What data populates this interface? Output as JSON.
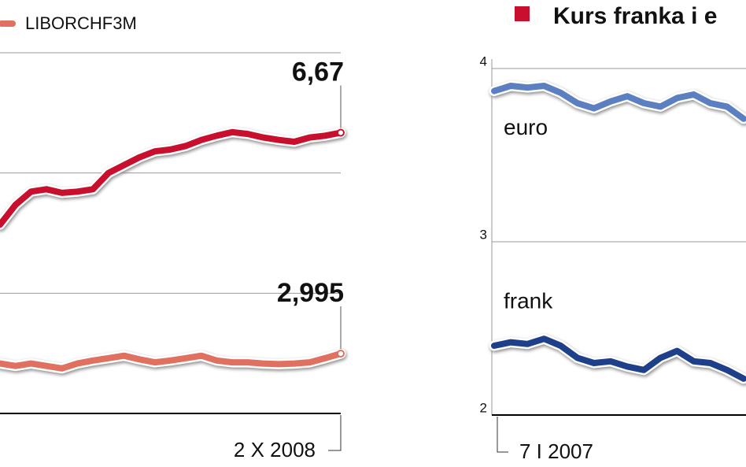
{
  "chart_data": [
    {
      "type": "line",
      "categories": [
        null,
        null,
        null,
        null,
        null,
        null,
        null,
        null,
        null,
        null,
        null,
        null,
        null,
        null,
        null,
        null,
        null,
        null,
        null,
        null,
        null,
        null,
        "2 X 2008"
      ],
      "series": [
        {
          "color": "#c8102e",
          "values": [
            5.14,
            5.47,
            5.69,
            5.73,
            5.67,
            5.69,
            5.73,
            6.0,
            6.13,
            6.26,
            6.36,
            6.39,
            6.45,
            6.55,
            6.62,
            6.68,
            6.65,
            6.59,
            6.55,
            6.52,
            6.59,
            6.62,
            6.67
          ],
          "value_labels": [
            null,
            null,
            null,
            null,
            null,
            null,
            null,
            null,
            null,
            null,
            null,
            null,
            null,
            null,
            null,
            null,
            null,
            null,
            null,
            null,
            null,
            null,
            "6,67"
          ]
        },
        {
          "name": "LIBORCHF3M",
          "color": "#e07060",
          "values": [
            2.83,
            2.79,
            2.83,
            2.79,
            2.75,
            2.83,
            2.88,
            2.92,
            2.96,
            2.9,
            2.85,
            2.88,
            2.92,
            2.96,
            2.88,
            2.85,
            2.85,
            2.83,
            2.82,
            2.83,
            2.85,
            2.92,
            2.995
          ],
          "value_labels": [
            null,
            null,
            null,
            null,
            null,
            null,
            null,
            null,
            null,
            null,
            null,
            null,
            null,
            null,
            null,
            null,
            null,
            null,
            null,
            null,
            null,
            null,
            "2,995"
          ]
        }
      ],
      "ylim": [
        2,
        8
      ],
      "yticks": [
        2,
        4,
        6,
        8
      ],
      "ytick_labels": false,
      "grid": true
    },
    {
      "type": "line",
      "title": "Kurs franka i e",
      "categories": [
        "7 I 2007",
        null,
        null,
        null,
        null,
        null,
        null,
        null,
        null,
        null,
        null,
        null,
        null,
        null,
        null,
        null
      ],
      "series": [
        {
          "name": "euro",
          "color": "#5b7fc0",
          "values": [
            3.87,
            3.9,
            3.89,
            3.9,
            3.86,
            3.8,
            3.77,
            3.81,
            3.84,
            3.8,
            3.78,
            3.83,
            3.85,
            3.8,
            3.78,
            3.71
          ]
        },
        {
          "name": "frank",
          "color": "#1e3f8a",
          "values": [
            2.4,
            2.42,
            2.41,
            2.44,
            2.4,
            2.33,
            2.3,
            2.31,
            2.28,
            2.26,
            2.33,
            2.37,
            2.31,
            2.3,
            2.26,
            2.21
          ]
        }
      ],
      "ylim": [
        2,
        4
      ],
      "yticks": [
        2,
        3,
        4
      ],
      "ytick_labels": true,
      "grid": true
    }
  ]
}
